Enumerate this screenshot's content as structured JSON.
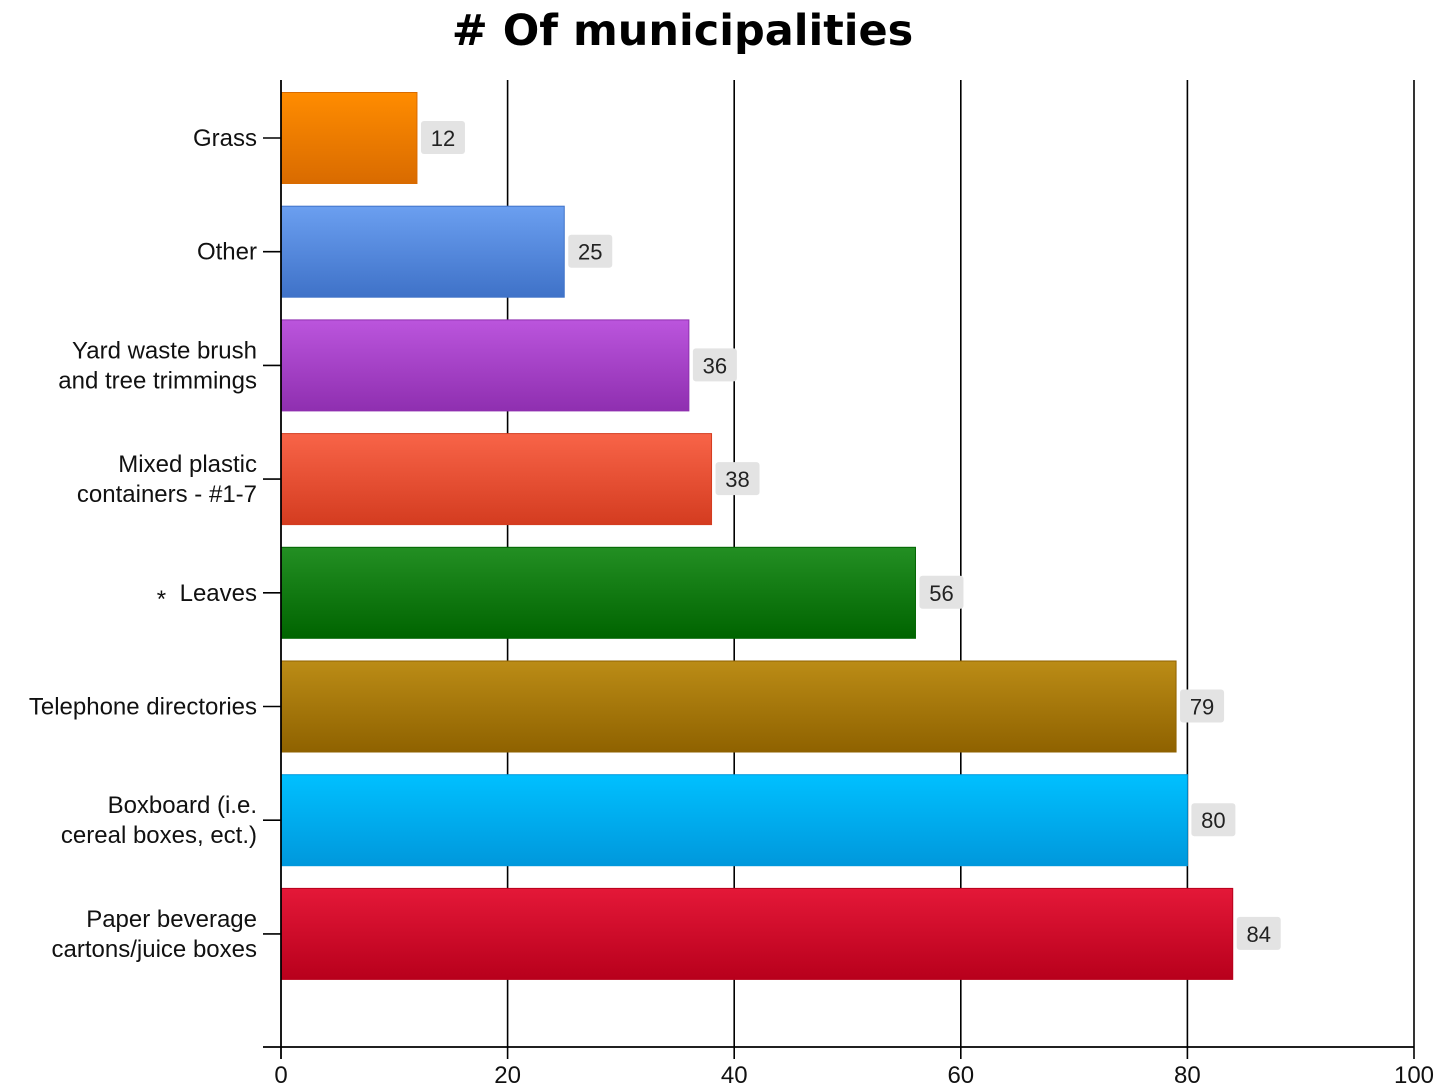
{
  "chart_data": {
    "type": "bar",
    "orientation": "horizontal",
    "title": "# Of municipalities",
    "xlabel": "",
    "ylabel": "",
    "xlim": [
      0,
      100
    ],
    "x_ticks": [
      0,
      20,
      40,
      60,
      80,
      100
    ],
    "grid": "vertical",
    "legend": "none",
    "categories": [
      {
        "label_lines": [
          "Grass"
        ],
        "marker": "",
        "value": 12,
        "color_top": "#ff8c00",
        "color_bottom": "#d96b00"
      },
      {
        "label_lines": [
          "Other"
        ],
        "marker": "",
        "value": 25,
        "color_top": "#6b9ff0",
        "color_bottom": "#3f72c8"
      },
      {
        "label_lines": [
          "Yard waste brush",
          "and tree trimmings"
        ],
        "marker": "",
        "value": 36,
        "color_top": "#bb55dd",
        "color_bottom": "#8f2fb0"
      },
      {
        "label_lines": [
          "Mixed plastic",
          "containers - #1-7"
        ],
        "marker": "",
        "value": 38,
        "color_top": "#f86448",
        "color_bottom": "#d43c20"
      },
      {
        "label_lines": [
          "Leaves"
        ],
        "marker": "*",
        "value": 56,
        "color_top": "#238f23",
        "color_bottom": "#006400"
      },
      {
        "label_lines": [
          "Telephone directories"
        ],
        "marker": "",
        "value": 79,
        "color_top": "#bb8c16",
        "color_bottom": "#8f6200"
      },
      {
        "label_lines": [
          "Boxboard (i.e.",
          "cereal boxes, ect.)"
        ],
        "marker": "",
        "value": 80,
        "color_top": "#00c0ff",
        "color_bottom": "#0098dc"
      },
      {
        "label_lines": [
          "Paper beverage",
          "cartons/juice boxes"
        ],
        "marker": "",
        "value": 84,
        "color_top": "#e41838",
        "color_bottom": "#b8001c"
      }
    ],
    "colors": {
      "gridline": "#000000",
      "axis": "#000000",
      "data_label_bg": "#e3e3e3"
    }
  }
}
